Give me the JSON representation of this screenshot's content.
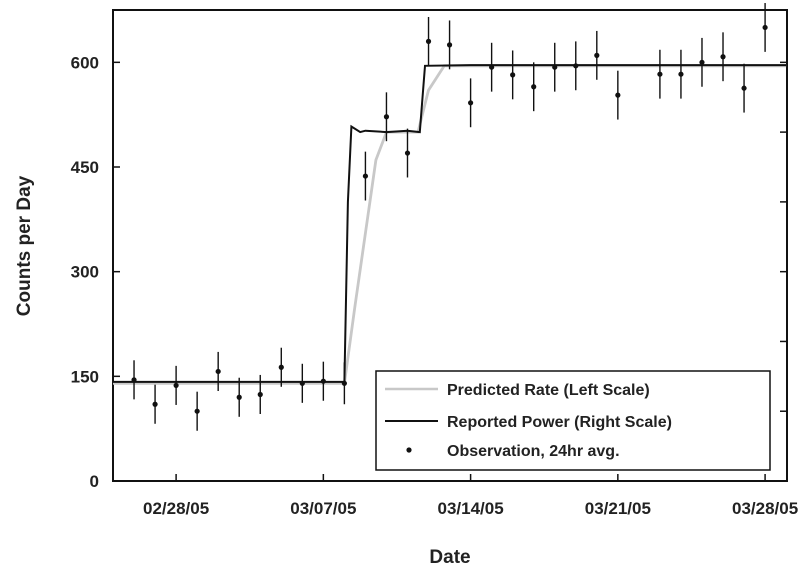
{
  "chart_data": {
    "type": "line",
    "xlabel": "Date",
    "ylabel": "Counts per Day",
    "ylim": [
      0,
      600
    ],
    "y_ticks": [
      0,
      150,
      300,
      450,
      600
    ],
    "x_ticks": [
      {
        "date": "2005-02-28",
        "label": "02/28/05"
      },
      {
        "date": "2005-03-07",
        "label": "03/07/05"
      },
      {
        "date": "2005-03-14",
        "label": "03/14/05"
      },
      {
        "date": "2005-03-21",
        "label": "03/21/05"
      },
      {
        "date": "2005-03-28",
        "label": "03/28/05"
      }
    ],
    "right_axis": {
      "ticks_shown": true,
      "labels_shown": false
    },
    "legend_position": "bottom-right",
    "legend": [
      {
        "label": "Predicted Rate (Left Scale)",
        "style": "line",
        "color": "#c8c8c8"
      },
      {
        "label": "Reported Power (Right Scale)",
        "style": "line",
        "color": "#111111"
      },
      {
        "label": "Observation, 24hr avg.",
        "style": "point",
        "color": "#111111"
      }
    ],
    "series": [
      {
        "name": "Predicted Rate (Left Scale)",
        "color": "#c8c8c8",
        "points": [
          [
            "2005-02-25 00:00",
            140
          ],
          [
            "2005-03-08 00:00",
            140
          ],
          [
            "2005-03-08 12:00",
            250
          ],
          [
            "2005-03-09 12:00",
            460
          ],
          [
            "2005-03-10 00:00",
            500
          ],
          [
            "2005-03-11 12:00",
            500
          ],
          [
            "2005-03-12 00:00",
            560
          ],
          [
            "2005-03-12 18:00",
            595
          ],
          [
            "2005-03-14 00:00",
            595
          ],
          [
            "2005-03-29 00:00",
            595
          ]
        ]
      },
      {
        "name": "Reported Power (Right Scale)",
        "color": "#111111",
        "points": [
          [
            "2005-02-25 00:00",
            142
          ],
          [
            "2005-03-08 00:00",
            142
          ],
          [
            "2005-03-08 04:00",
            400
          ],
          [
            "2005-03-08 08:00",
            508
          ],
          [
            "2005-03-08 18:00",
            500
          ],
          [
            "2005-03-09 00:00",
            502
          ],
          [
            "2005-03-10 00:00",
            500
          ],
          [
            "2005-03-11 00:00",
            502
          ],
          [
            "2005-03-11 14:00",
            500
          ],
          [
            "2005-03-11 20:00",
            595
          ],
          [
            "2005-03-14 00:00",
            596
          ],
          [
            "2005-03-29 00:00",
            596
          ]
        ]
      },
      {
        "name": "Observation, 24hr avg.",
        "color": "#111111",
        "style": "points-with-errorbars",
        "points": [
          {
            "x": "2005-02-26",
            "y": 145,
            "err": 28
          },
          {
            "x": "2005-02-27",
            "y": 110,
            "err": 28
          },
          {
            "x": "2005-02-28",
            "y": 137,
            "err": 28
          },
          {
            "x": "2005-03-01",
            "y": 100,
            "err": 28
          },
          {
            "x": "2005-03-02",
            "y": 157,
            "err": 28
          },
          {
            "x": "2005-03-03",
            "y": 120,
            "err": 28
          },
          {
            "x": "2005-03-04",
            "y": 124,
            "err": 28
          },
          {
            "x": "2005-03-05",
            "y": 163,
            "err": 28
          },
          {
            "x": "2005-03-06",
            "y": 140,
            "err": 28
          },
          {
            "x": "2005-03-07",
            "y": 143,
            "err": 28
          },
          {
            "x": "2005-03-08",
            "y": 140,
            "err": 30
          },
          {
            "x": "2005-03-09",
            "y": 437,
            "err": 35
          },
          {
            "x": "2005-03-10",
            "y": 522,
            "err": 35
          },
          {
            "x": "2005-03-11",
            "y": 470,
            "err": 35
          },
          {
            "x": "2005-03-12",
            "y": 630,
            "err": 35
          },
          {
            "x": "2005-03-13",
            "y": 625,
            "err": 35
          },
          {
            "x": "2005-03-14",
            "y": 542,
            "err": 35
          },
          {
            "x": "2005-03-15",
            "y": 593,
            "err": 35
          },
          {
            "x": "2005-03-16",
            "y": 582,
            "err": 35
          },
          {
            "x": "2005-03-17",
            "y": 565,
            "err": 35
          },
          {
            "x": "2005-03-18",
            "y": 593,
            "err": 35
          },
          {
            "x": "2005-03-19",
            "y": 595,
            "err": 35
          },
          {
            "x": "2005-03-20",
            "y": 610,
            "err": 35
          },
          {
            "x": "2005-03-21",
            "y": 553,
            "err": 35
          },
          {
            "x": "2005-03-23",
            "y": 583,
            "err": 35
          },
          {
            "x": "2005-03-24",
            "y": 583,
            "err": 35
          },
          {
            "x": "2005-03-25",
            "y": 600,
            "err": 35
          },
          {
            "x": "2005-03-26",
            "y": 608,
            "err": 35
          },
          {
            "x": "2005-03-27",
            "y": 563,
            "err": 35
          },
          {
            "x": "2005-03-28",
            "y": 650,
            "err": 35
          }
        ]
      }
    ]
  }
}
